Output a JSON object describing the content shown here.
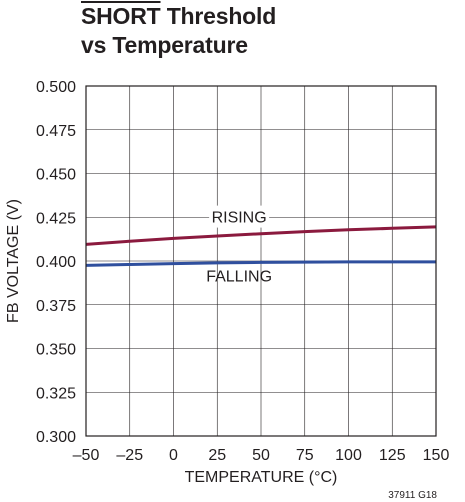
{
  "title": {
    "overlined": "SHORT",
    "line1_rest": " Threshold",
    "line2": "vs Temperature"
  },
  "chart_data": {
    "type": "line",
    "xlabel": "TEMPERATURE (°C)",
    "ylabel": "FB VOLTAGE (V)",
    "xlim": [
      -50,
      150
    ],
    "ylim": [
      0.3,
      0.5
    ],
    "xticks": [
      -50,
      -25,
      0,
      25,
      50,
      75,
      100,
      125,
      150
    ],
    "xtick_labels": [
      "–50",
      "–25",
      "0",
      "25",
      "50",
      "75",
      "100",
      "125",
      "150"
    ],
    "yticks": [
      0.3,
      0.325,
      0.35,
      0.375,
      0.4,
      0.425,
      0.45,
      0.475,
      0.5
    ],
    "ytick_labels": [
      "0.300",
      "0.325",
      "0.350",
      "0.375",
      "0.400",
      "0.425",
      "0.450",
      "0.475",
      "0.500"
    ],
    "grid": true,
    "series": [
      {
        "name": "RISING",
        "color": "#8b1a3e",
        "x": [
          -50,
          -25,
          0,
          25,
          50,
          75,
          100,
          125,
          150
        ],
        "y": [
          0.4095,
          0.4113,
          0.4129,
          0.4143,
          0.4156,
          0.4168,
          0.4178,
          0.4187,
          0.4195
        ]
      },
      {
        "name": "FALLING",
        "color": "#2f4f9e",
        "x": [
          -50,
          -25,
          0,
          25,
          50,
          75,
          100,
          125,
          150
        ],
        "y": [
          0.3975,
          0.398,
          0.3985,
          0.3989,
          0.3992,
          0.3994,
          0.3995,
          0.3995,
          0.3995
        ]
      }
    ],
    "footnote": "37911 G18"
  }
}
